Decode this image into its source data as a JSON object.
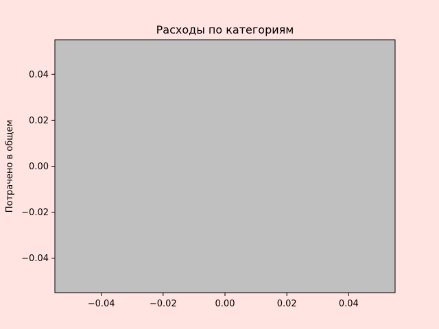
{
  "colors": {
    "figure_background": "#FFE4E1",
    "plot_background": "#C0C0C0",
    "axis_color": "#000000"
  },
  "chart_data": {
    "type": "bar",
    "title": "Расходы по категориям",
    "xlabel": "",
    "ylabel": "Потрачено в общем",
    "categories": [],
    "values": [],
    "xlim": [
      -0.055,
      0.055
    ],
    "ylim": [
      -0.055,
      0.055
    ],
    "xticks": [
      -0.04,
      -0.02,
      0.0,
      0.02,
      0.04
    ],
    "xtick_labels": [
      "−0.04",
      "−0.02",
      "0.00",
      "0.02",
      "0.04"
    ],
    "yticks": [
      -0.04,
      -0.02,
      0.0,
      0.02,
      0.04
    ],
    "ytick_labels": [
      "−0.04",
      "−0.02",
      "0.00",
      "0.02",
      "0.04"
    ],
    "grid": false,
    "legend": "none"
  }
}
